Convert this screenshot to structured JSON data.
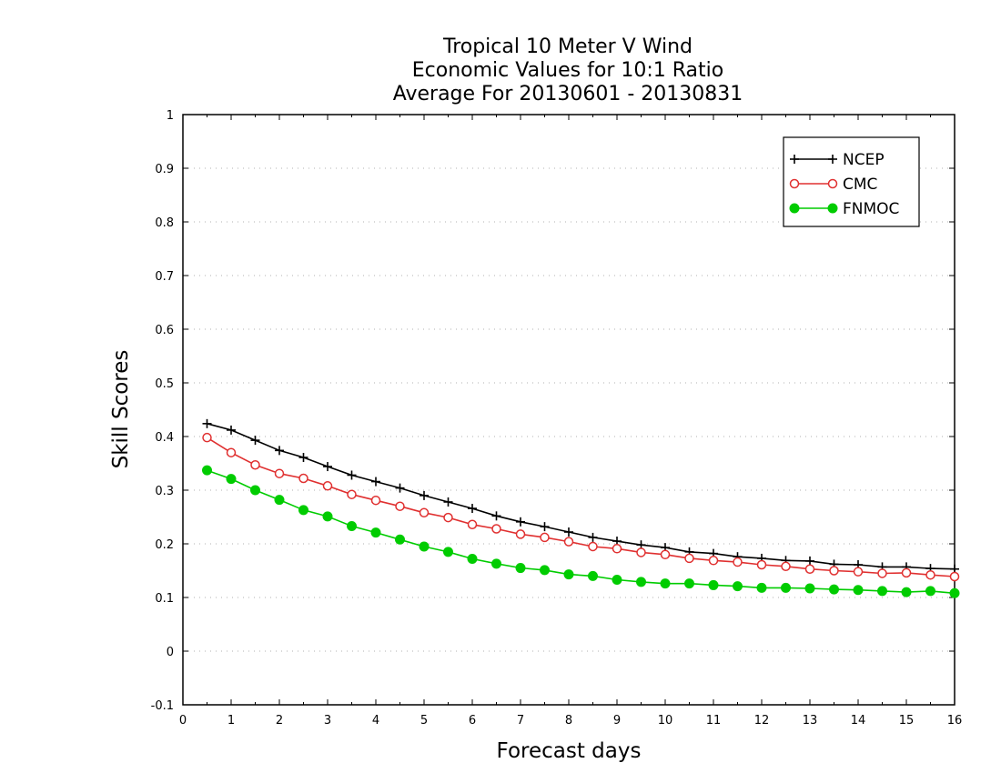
{
  "chart_data": {
    "type": "line",
    "title_lines": [
      "Tropical 10 Meter V Wind",
      "Economic Values for 10:1 Ratio",
      "Average For 20130601 - 20130831"
    ],
    "xlabel": "Forecast days",
    "ylabel": "Skill Scores",
    "xlim": [
      0,
      16
    ],
    "ylim": [
      -0.1,
      1
    ],
    "x_ticks": [
      "0",
      "1",
      "2",
      "3",
      "4",
      "5",
      "6",
      "7",
      "8",
      "9",
      "10",
      "11",
      "12",
      "13",
      "14",
      "15",
      "16"
    ],
    "y_ticks": [
      "-0.1",
      "0",
      "0.1",
      "0.2",
      "0.3",
      "0.4",
      "0.5",
      "0.6",
      "0.7",
      "0.8",
      "0.9",
      "1"
    ],
    "grid": true,
    "legend_position": "top-right",
    "x": [
      0.5,
      1,
      1.5,
      2,
      2.5,
      3,
      3.5,
      4,
      4.5,
      5,
      5.5,
      6,
      6.5,
      7,
      7.5,
      8,
      8.5,
      9,
      9.5,
      10,
      10.5,
      11,
      11.5,
      12,
      12.5,
      13,
      13.5,
      14,
      14.5,
      15,
      15.5,
      16
    ],
    "series": [
      {
        "name": "NCEP",
        "color": "#000000",
        "marker": "plus",
        "values": [
          0.424,
          0.412,
          0.393,
          0.374,
          0.361,
          0.344,
          0.328,
          0.316,
          0.304,
          0.29,
          0.278,
          0.266,
          0.252,
          0.241,
          0.232,
          0.222,
          0.212,
          0.205,
          0.198,
          0.193,
          0.185,
          0.182,
          0.176,
          0.173,
          0.169,
          0.168,
          0.162,
          0.161,
          0.157,
          0.157,
          0.154,
          0.153
        ]
      },
      {
        "name": "CMC",
        "color": "#e03030",
        "marker": "circle-open",
        "values": [
          0.398,
          0.37,
          0.347,
          0.331,
          0.322,
          0.308,
          0.292,
          0.281,
          0.27,
          0.258,
          0.249,
          0.236,
          0.228,
          0.218,
          0.212,
          0.204,
          0.195,
          0.191,
          0.184,
          0.18,
          0.173,
          0.169,
          0.166,
          0.161,
          0.158,
          0.153,
          0.15,
          0.148,
          0.145,
          0.146,
          0.142,
          0.139
        ]
      },
      {
        "name": "FNMOC",
        "color": "#00cc00",
        "marker": "circle-filled",
        "values": [
          0.337,
          0.321,
          0.3,
          0.282,
          0.263,
          0.251,
          0.233,
          0.221,
          0.208,
          0.195,
          0.185,
          0.172,
          0.163,
          0.155,
          0.151,
          0.143,
          0.14,
          0.133,
          0.129,
          0.126,
          0.126,
          0.123,
          0.121,
          0.118,
          0.118,
          0.117,
          0.115,
          0.114,
          0.112,
          0.11,
          0.112,
          0.108
        ]
      }
    ]
  }
}
